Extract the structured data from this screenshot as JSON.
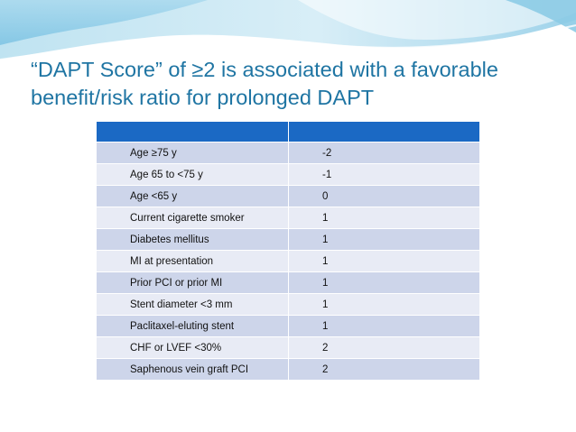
{
  "slide": {
    "title_line1": "“DAPT Score”  of ≥2 is associated with a favorable",
    "title_line2": "benefit/risk ratio for prolonged DAPT"
  },
  "table": {
    "header": [
      "",
      ""
    ],
    "rows": [
      {
        "factor": "Age ≥75 y",
        "points": "-2"
      },
      {
        "factor": "Age 65 to <75 y",
        "points": "-1"
      },
      {
        "factor": "Age <65 y",
        "points": "0"
      },
      {
        "factor": "Current cigarette smoker",
        "points": "1"
      },
      {
        "factor": "Diabetes mellitus",
        "points": "1"
      },
      {
        "factor": "MI at presentation",
        "points": "1"
      },
      {
        "factor": "Prior PCI or prior MI",
        "points": "1"
      },
      {
        "factor": "Stent diameter <3 mm",
        "points": "1"
      },
      {
        "factor": "Paclitaxel-eluting stent",
        "points": "1"
      },
      {
        "factor": "CHF or LVEF <30%",
        "points": "2"
      },
      {
        "factor": "Saphenous vein graft PCI",
        "points": "2"
      }
    ]
  },
  "colors": {
    "title": "#1f75a3",
    "header_fill": "#1b69c4",
    "row_dark": "#cdd5ea",
    "row_light": "#e8ebf5"
  }
}
